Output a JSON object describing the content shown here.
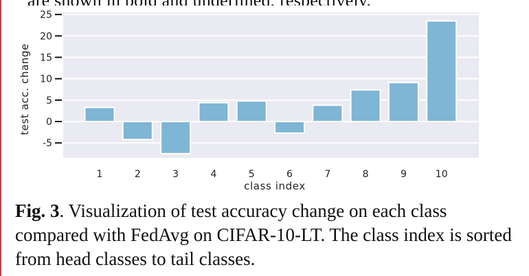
{
  "header_text": "are shown in bold and underlined, respectively.",
  "figure": {
    "caption_label": "Fig. 3",
    "caption_text": ".  Visualization of test accuracy change on each class compared with FedAvg on CIFAR-10-LT. The class index is sorted from head classes to tail classes."
  },
  "chart_data": {
    "type": "bar",
    "categories": [
      "1",
      "2",
      "3",
      "4",
      "5",
      "6",
      "7",
      "8",
      "9",
      "10"
    ],
    "values": [
      3.3,
      -4.2,
      -7.5,
      4.4,
      4.8,
      -2.7,
      3.8,
      7.4,
      9.1,
      23.5
    ],
    "xlabel": "class index",
    "ylabel": "test acc. change",
    "yticks": [
      -5,
      0,
      5,
      10,
      15,
      20,
      25
    ],
    "ylim": [
      -8.5,
      25.5
    ],
    "grid": true,
    "bar_color": "#7fb5d5",
    "background_color": "#eaeaf2"
  }
}
